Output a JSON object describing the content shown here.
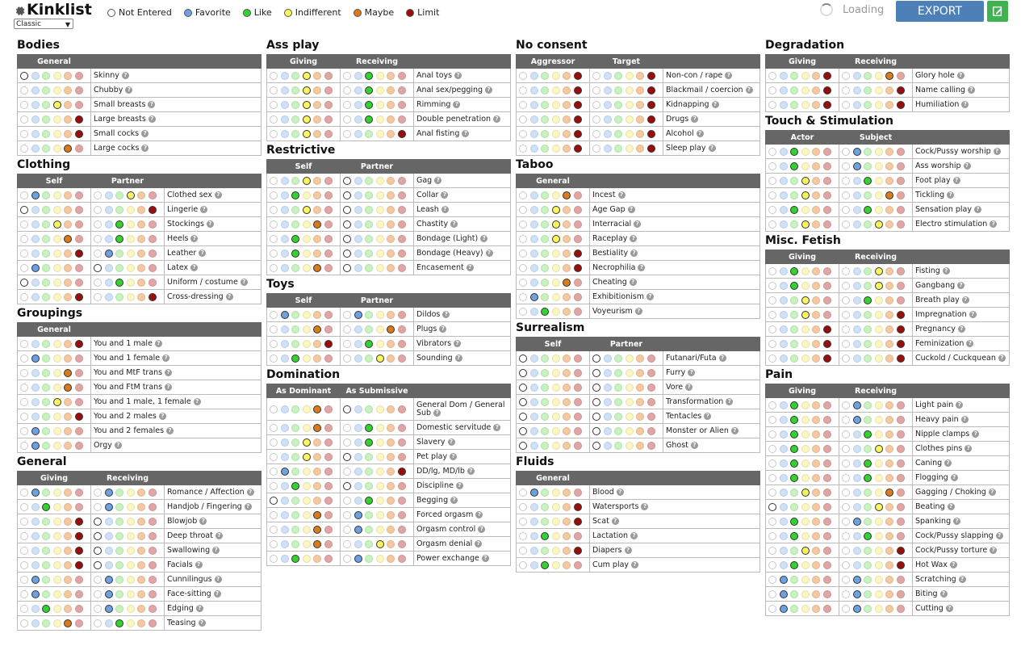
{
  "app": {
    "title": "Kinklist",
    "template_select": "Classic",
    "loading_text": "Loading",
    "export_label": "EXPORT"
  },
  "legend": [
    {
      "label": "Not Entered",
      "color": "#ffffff"
    },
    {
      "label": "Favorite",
      "color": "#6da1df"
    },
    {
      "label": "Like",
      "color": "#34d22e"
    },
    {
      "label": "Indifferent",
      "color": "#fbf45f"
    },
    {
      "label": "Maybe",
      "color": "#d97a1c"
    },
    {
      "label": "Limit",
      "color": "#9b0d0d"
    }
  ],
  "columns": [
    [
      {
        "name": "Bodies",
        "cols": [
          "General"
        ],
        "rows": [
          {
            "label": "Skinny",
            "v": [
              0
            ]
          },
          {
            "label": "Chubby",
            "v": [
              null
            ]
          },
          {
            "label": "Small breasts",
            "v": [
              3
            ]
          },
          {
            "label": "Large breasts",
            "v": [
              5
            ]
          },
          {
            "label": "Small cocks",
            "v": [
              5
            ]
          },
          {
            "label": "Large cocks",
            "v": [
              4
            ]
          }
        ]
      },
      {
        "name": "Clothing",
        "cols": [
          "Self",
          "Partner"
        ],
        "rows": [
          {
            "label": "Clothed sex",
            "v": [
              1,
              3
            ]
          },
          {
            "label": "Lingerie",
            "v": [
              0,
              5
            ]
          },
          {
            "label": "Stockings",
            "v": [
              3,
              2
            ]
          },
          {
            "label": "Heels",
            "v": [
              4,
              2
            ]
          },
          {
            "label": "Leather",
            "v": [
              5,
              1
            ]
          },
          {
            "label": "Latex",
            "v": [
              1,
              0
            ]
          },
          {
            "label": "Uniform / costume",
            "v": [
              0,
              2
            ]
          },
          {
            "label": "Cross-dressing",
            "v": [
              5,
              5
            ]
          }
        ]
      },
      {
        "name": "Groupings",
        "cols": [
          "General"
        ],
        "rows": [
          {
            "label": "You and 1 male",
            "v": [
              5
            ]
          },
          {
            "label": "You and 1 female",
            "v": [
              1
            ]
          },
          {
            "label": "You and MtF trans",
            "v": [
              4
            ]
          },
          {
            "label": "You and FtM trans",
            "v": [
              4
            ]
          },
          {
            "label": "You and 1 male, 1 female",
            "v": [
              3
            ]
          },
          {
            "label": "You and 2 males",
            "v": [
              5
            ]
          },
          {
            "label": "You and 2 females",
            "v": [
              1
            ]
          },
          {
            "label": "Orgy",
            "v": [
              1
            ]
          }
        ]
      },
      {
        "name": "General",
        "cols": [
          "Giving",
          "Receiving"
        ],
        "rows": [
          {
            "label": "Romance / Affection",
            "v": [
              1,
              1
            ]
          },
          {
            "label": "Handjob / Fingering",
            "v": [
              2,
              1
            ]
          },
          {
            "label": "Blowjob",
            "v": [
              5,
              0
            ]
          },
          {
            "label": "Deep throat",
            "v": [
              5,
              0
            ]
          },
          {
            "label": "Swallowing",
            "v": [
              5,
              0
            ]
          },
          {
            "label": "Facials",
            "v": [
              5,
              0
            ]
          },
          {
            "label": "Cunnilingus",
            "v": [
              1,
              1
            ]
          },
          {
            "label": "Face-sitting",
            "v": [
              1,
              1
            ]
          },
          {
            "label": "Edging",
            "v": [
              2,
              1
            ]
          },
          {
            "label": "Teasing",
            "v": [
              4,
              2
            ]
          }
        ]
      }
    ],
    [
      {
        "name": "Ass play",
        "cols": [
          "Giving",
          "Receiving"
        ],
        "rows": [
          {
            "label": "Anal toys",
            "v": [
              3,
              2
            ]
          },
          {
            "label": "Anal sex/pegging",
            "v": [
              3,
              2
            ]
          },
          {
            "label": "Rimming",
            "v": [
              3,
              2
            ]
          },
          {
            "label": "Double penetration",
            "v": [
              3,
              2
            ]
          },
          {
            "label": "Anal fisting",
            "v": [
              3,
              5
            ]
          }
        ]
      },
      {
        "name": "Restrictive",
        "cols": [
          "Self",
          "Partner"
        ],
        "rows": [
          {
            "label": "Gag",
            "v": [
              3,
              0
            ]
          },
          {
            "label": "Collar",
            "v": [
              2,
              0
            ]
          },
          {
            "label": "Leash",
            "v": [
              3,
              0
            ]
          },
          {
            "label": "Chastity",
            "v": [
              4,
              0
            ]
          },
          {
            "label": "Bondage (Light)",
            "v": [
              2,
              0
            ]
          },
          {
            "label": "Bondage (Heavy)",
            "v": [
              2,
              0
            ]
          },
          {
            "label": "Encasement",
            "v": [
              4,
              0
            ]
          }
        ]
      },
      {
        "name": "Toys",
        "cols": [
          "Self",
          "Partner"
        ],
        "rows": [
          {
            "label": "Dildos",
            "v": [
              1,
              1
            ]
          },
          {
            "label": "Plugs",
            "v": [
              4,
              4
            ]
          },
          {
            "label": "Vibrators",
            "v": [
              5,
              2
            ]
          },
          {
            "label": "Sounding",
            "v": [
              2,
              3
            ]
          }
        ]
      },
      {
        "name": "Domination",
        "cols": [
          "As Dominant",
          "As Submissive"
        ],
        "rows": [
          {
            "label": "General Dom / General Sub",
            "v": [
              4,
              0
            ]
          },
          {
            "label": "Domestic servitude",
            "v": [
              4,
              2
            ]
          },
          {
            "label": "Slavery",
            "v": [
              3,
              2
            ]
          },
          {
            "label": "Pet play",
            "v": [
              3,
              0
            ]
          },
          {
            "label": "DD/lg, MD/lb",
            "v": [
              1,
              5
            ]
          },
          {
            "label": "Discipline",
            "v": [
              2,
              0
            ]
          },
          {
            "label": "Begging",
            "v": [
              0,
              2
            ]
          },
          {
            "label": "Forced orgasm",
            "v": [
              4,
              1
            ]
          },
          {
            "label": "Orgasm control",
            "v": [
              4,
              1
            ]
          },
          {
            "label": "Orgasm denial",
            "v": [
              4,
              3
            ]
          },
          {
            "label": "Power exchange",
            "v": [
              2,
              1
            ]
          }
        ]
      }
    ],
    [
      {
        "name": "No consent",
        "cols": [
          "Aggressor",
          "Target"
        ],
        "rows": [
          {
            "label": "Non-con / rape",
            "v": [
              5,
              5
            ]
          },
          {
            "label": "Blackmail / coercion",
            "v": [
              5,
              5
            ]
          },
          {
            "label": "Kidnapping",
            "v": [
              5,
              5
            ]
          },
          {
            "label": "Drugs",
            "v": [
              5,
              5
            ]
          },
          {
            "label": "Alcohol",
            "v": [
              5,
              5
            ]
          },
          {
            "label": "Sleep play",
            "v": [
              5,
              5
            ]
          }
        ]
      },
      {
        "name": "Taboo",
        "cols": [
          "General"
        ],
        "rows": [
          {
            "label": "Incest",
            "v": [
              4
            ]
          },
          {
            "label": "Age Gap",
            "v": [
              3
            ]
          },
          {
            "label": "Interracial",
            "v": [
              3
            ]
          },
          {
            "label": "Raceplay",
            "v": [
              3
            ]
          },
          {
            "label": "Bestiality",
            "v": [
              5
            ]
          },
          {
            "label": "Necrophilia",
            "v": [
              5
            ]
          },
          {
            "label": "Cheating",
            "v": [
              4
            ]
          },
          {
            "label": "Exhibitionism",
            "v": [
              1
            ]
          },
          {
            "label": "Voyeurism",
            "v": [
              2
            ]
          }
        ]
      },
      {
        "name": "Surrealism",
        "cols": [
          "Self",
          "Partner"
        ],
        "rows": [
          {
            "label": "Futanari/Futa",
            "v": [
              0,
              0
            ]
          },
          {
            "label": "Furry",
            "v": [
              0,
              0
            ]
          },
          {
            "label": "Vore",
            "v": [
              0,
              0
            ]
          },
          {
            "label": "Transformation",
            "v": [
              0,
              0
            ]
          },
          {
            "label": "Tentacles",
            "v": [
              0,
              0
            ]
          },
          {
            "label": "Monster or Alien",
            "v": [
              0,
              0
            ]
          },
          {
            "label": "Ghost",
            "v": [
              0,
              0
            ]
          }
        ]
      },
      {
        "name": "Fluids",
        "cols": [
          "General"
        ],
        "rows": [
          {
            "label": "Blood",
            "v": [
              1
            ]
          },
          {
            "label": "Watersports",
            "v": [
              5
            ]
          },
          {
            "label": "Scat",
            "v": [
              5
            ]
          },
          {
            "label": "Lactation",
            "v": [
              2
            ]
          },
          {
            "label": "Diapers",
            "v": [
              5
            ]
          },
          {
            "label": "Cum play",
            "v": [
              2
            ]
          }
        ]
      }
    ],
    [
      {
        "name": "Degradation",
        "cols": [
          "Giving",
          "Receiving"
        ],
        "rows": [
          {
            "label": "Glory hole",
            "v": [
              5,
              4
            ]
          },
          {
            "label": "Name calling",
            "v": [
              5,
              5
            ]
          },
          {
            "label": "Humiliation",
            "v": [
              5,
              5
            ]
          }
        ]
      },
      {
        "name": "Touch & Stimulation",
        "cols": [
          "Actor",
          "Subject"
        ],
        "rows": [
          {
            "label": "Cock/Pussy worship",
            "v": [
              2,
              1
            ]
          },
          {
            "label": "Ass worship",
            "v": [
              2,
              1
            ]
          },
          {
            "label": "Foot play",
            "v": [
              3,
              2
            ]
          },
          {
            "label": "Tickling",
            "v": [
              3,
              4
            ]
          },
          {
            "label": "Sensation play",
            "v": [
              2,
              2
            ]
          },
          {
            "label": "Electro stimulation",
            "v": [
              3,
              3
            ]
          }
        ]
      },
      {
        "name": "Misc. Fetish",
        "cols": [
          "Giving",
          "Receiving"
        ],
        "rows": [
          {
            "label": "Fisting",
            "v": [
              2,
              3
            ]
          },
          {
            "label": "Gangbang",
            "v": [
              2,
              3
            ]
          },
          {
            "label": "Breath play",
            "v": [
              3,
              2
            ]
          },
          {
            "label": "Impregnation",
            "v": [
              3,
              5
            ]
          },
          {
            "label": "Pregnancy",
            "v": [
              5,
              5
            ]
          },
          {
            "label": "Feminization",
            "v": [
              5,
              5
            ]
          },
          {
            "label": "Cuckold / Cuckquean",
            "v": [
              5,
              5
            ]
          }
        ]
      },
      {
        "name": "Pain",
        "cols": [
          "Giving",
          "Receiving"
        ],
        "rows": [
          {
            "label": "Light pain",
            "v": [
              2,
              1
            ]
          },
          {
            "label": "Heavy pain",
            "v": [
              2,
              1
            ]
          },
          {
            "label": "Nipple clamps",
            "v": [
              2,
              2
            ]
          },
          {
            "label": "Clothes pins",
            "v": [
              2,
              3
            ]
          },
          {
            "label": "Caning",
            "v": [
              2,
              2
            ]
          },
          {
            "label": "Flogging",
            "v": [
              2,
              2
            ]
          },
          {
            "label": "Gagging / Choking",
            "v": [
              3,
              4
            ]
          },
          {
            "label": "Beating",
            "v": [
              0,
              3
            ]
          },
          {
            "label": "Spanking",
            "v": [
              2,
              1
            ]
          },
          {
            "label": "Cock/Pussy slapping",
            "v": [
              2,
              2
            ]
          },
          {
            "label": "Cock/Pussy torture",
            "v": [
              3,
              5
            ]
          },
          {
            "label": "Hot Wax",
            "v": [
              2,
              5
            ]
          },
          {
            "label": "Scratching",
            "v": [
              1,
              1
            ]
          },
          {
            "label": "Biting",
            "v": [
              1,
              1
            ]
          },
          {
            "label": "Cutting",
            "v": [
              1,
              1
            ]
          }
        ]
      }
    ]
  ]
}
